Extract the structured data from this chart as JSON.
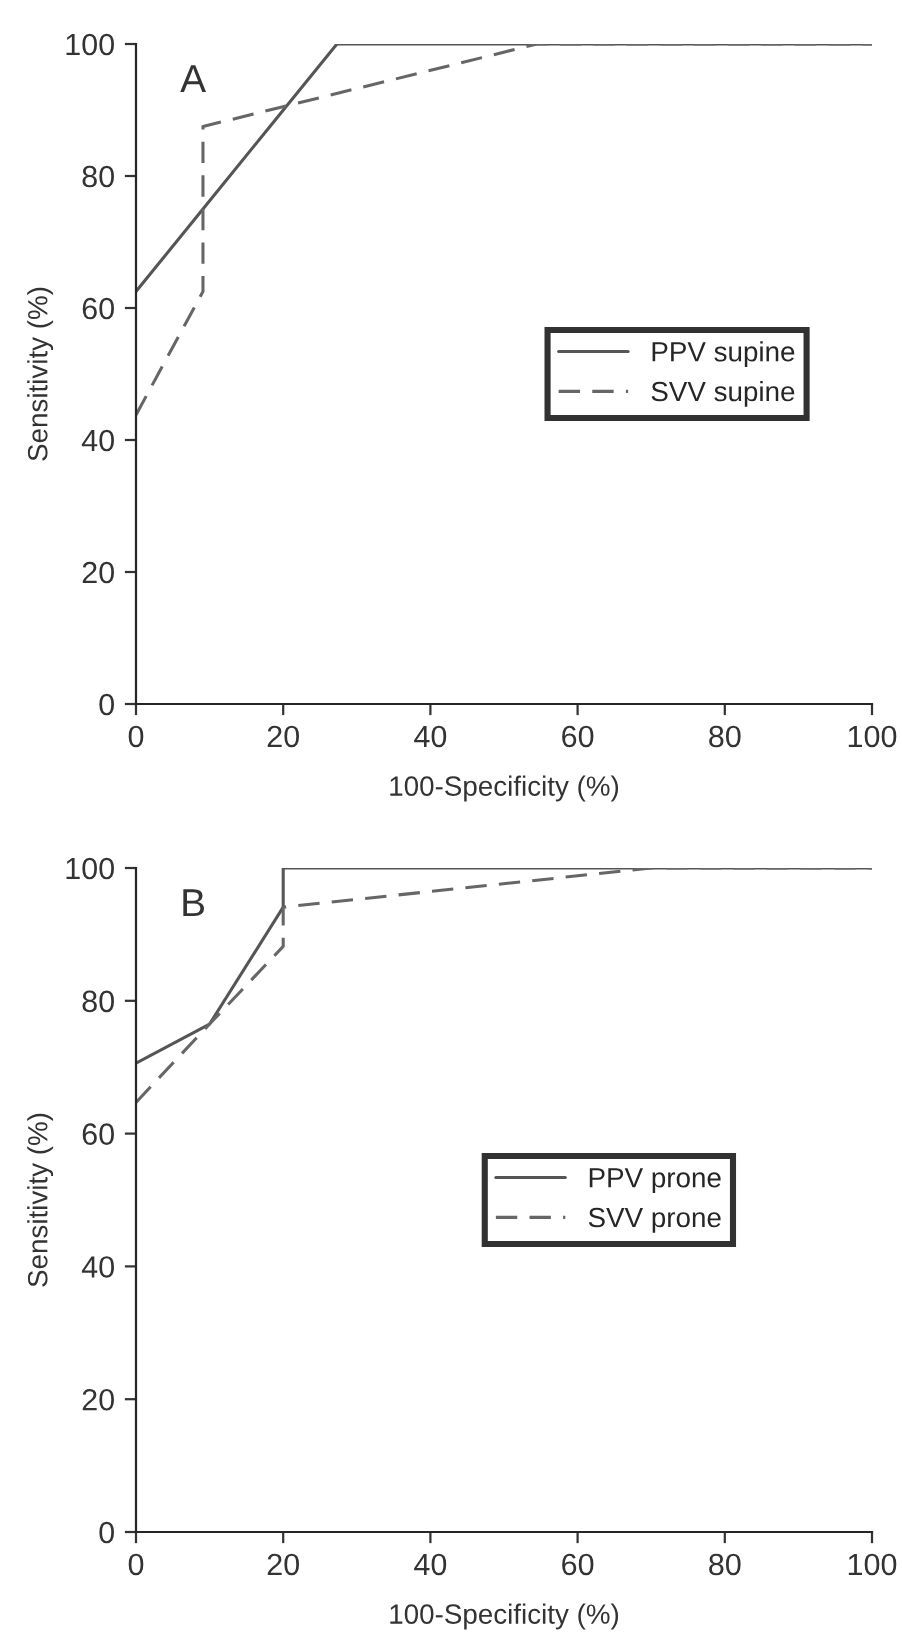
{
  "chart_data": [
    {
      "type": "line",
      "title": "A",
      "xlabel": "100-Specificity (%)",
      "ylabel": "Sensitivity (%)",
      "xlim": [
        0,
        100
      ],
      "ylim": [
        0,
        100
      ],
      "xticks": [
        0,
        20,
        40,
        60,
        80,
        100
      ],
      "yticks": [
        0,
        20,
        40,
        60,
        80,
        100
      ],
      "legend": "center right",
      "grid": false,
      "marker": "none",
      "series": [
        {
          "name": "PPV supine",
          "color": "#555555",
          "line_style": "solid",
          "x": [
            0,
            9.1,
            18.2,
            27.3,
            100
          ],
          "values": [
            62.5,
            75,
            87.5,
            100,
            100
          ]
        },
        {
          "name": "SVV supine",
          "color": "#666666",
          "line_style": "dashed",
          "x": [
            0,
            9.1,
            9.1,
            54.5,
            100
          ],
          "values": [
            43.8,
            62.5,
            87.5,
            100,
            100
          ]
        }
      ]
    },
    {
      "type": "line",
      "title": "B",
      "xlabel": "100-Specificity (%)",
      "ylabel": "Sensitivity (%)",
      "xlim": [
        0,
        100
      ],
      "ylim": [
        0,
        100
      ],
      "xticks": [
        0,
        20,
        40,
        60,
        80,
        100
      ],
      "yticks": [
        0,
        20,
        40,
        60,
        80,
        100
      ],
      "legend": "center right",
      "grid": false,
      "marker": "none",
      "series": [
        {
          "name": "PPV prone",
          "color": "#555555",
          "line_style": "solid",
          "x": [
            0,
            10,
            20,
            20,
            100
          ],
          "values": [
            70.6,
            76.5,
            94.1,
            100,
            100
          ]
        },
        {
          "name": "SVV prone",
          "color": "#666666",
          "line_style": "dashed",
          "x": [
            0,
            10,
            20,
            20,
            70,
            100
          ],
          "values": [
            64.7,
            76.5,
            88.2,
            94.1,
            100,
            100
          ]
        }
      ]
    }
  ]
}
